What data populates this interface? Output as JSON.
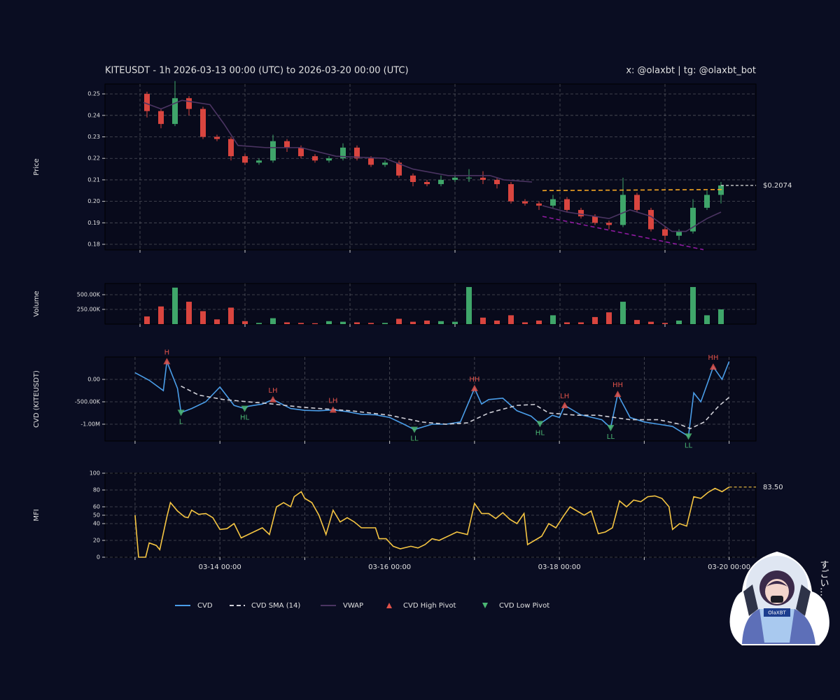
{
  "header": {
    "title": "KITEUSDT - 1h 2026-03-13 00:00 (UTC) to 2026-03-20 00:00 (UTC)",
    "credit": "x: @olaxbt | tg: @olaxbt_bot"
  },
  "sticker": {
    "badge": "OlaXBT",
    "caption": "すごい…"
  },
  "chart_data": [
    {
      "type": "candlestick",
      "ylabel": "Price",
      "grid": true,
      "up_color": "#3fa66a",
      "down_color": "#d9453f",
      "x": [
        2,
        6,
        10,
        14,
        18,
        22,
        26,
        30,
        34,
        38,
        42,
        46,
        50,
        54,
        58,
        62,
        66,
        70,
        74,
        78,
        82,
        86,
        90,
        94,
        98,
        102,
        106,
        110,
        114,
        118,
        122,
        126,
        130,
        134,
        138,
        142,
        146,
        150,
        154,
        158,
        162,
        166
      ],
      "open": [
        0.25,
        0.242,
        0.236,
        0.248,
        0.243,
        0.23,
        0.229,
        0.221,
        0.218,
        0.219,
        0.228,
        0.225,
        0.221,
        0.219,
        0.22,
        0.225,
        0.22,
        0.217,
        0.218,
        0.212,
        0.209,
        0.208,
        0.21,
        0.211,
        0.211,
        0.21,
        0.208,
        0.2,
        0.199,
        0.198,
        0.201,
        0.196,
        0.193,
        0.19,
        0.189,
        0.203,
        0.196,
        0.187,
        0.184,
        0.186,
        0.197,
        0.203
      ],
      "high": [
        0.251,
        0.243,
        0.256,
        0.249,
        0.244,
        0.231,
        0.23,
        0.222,
        0.22,
        0.231,
        0.229,
        0.226,
        0.222,
        0.221,
        0.227,
        0.226,
        0.221,
        0.219,
        0.219,
        0.213,
        0.21,
        0.212,
        0.212,
        0.215,
        0.214,
        0.211,
        0.209,
        0.201,
        0.2,
        0.203,
        0.202,
        0.197,
        0.194,
        0.191,
        0.211,
        0.204,
        0.197,
        0.188,
        0.187,
        0.201,
        0.205,
        0.209
      ],
      "low": [
        0.239,
        0.234,
        0.235,
        0.24,
        0.229,
        0.228,
        0.219,
        0.217,
        0.217,
        0.218,
        0.223,
        0.22,
        0.218,
        0.218,
        0.219,
        0.219,
        0.216,
        0.216,
        0.211,
        0.207,
        0.207,
        0.207,
        0.209,
        0.209,
        0.208,
        0.206,
        0.199,
        0.198,
        0.196,
        0.197,
        0.195,
        0.192,
        0.189,
        0.187,
        0.188,
        0.195,
        0.186,
        0.182,
        0.182,
        0.185,
        0.196,
        0.199
      ],
      "close": [
        0.242,
        0.236,
        0.248,
        0.243,
        0.23,
        0.229,
        0.221,
        0.218,
        0.219,
        0.228,
        0.225,
        0.221,
        0.219,
        0.22,
        0.225,
        0.22,
        0.217,
        0.218,
        0.212,
        0.209,
        0.208,
        0.21,
        0.211,
        0.211,
        0.21,
        0.208,
        0.2,
        0.199,
        0.198,
        0.201,
        0.196,
        0.193,
        0.19,
        0.189,
        0.203,
        0.196,
        0.187,
        0.184,
        0.186,
        0.197,
        0.203,
        0.2074
      ],
      "xlim": [
        -10,
        176
      ],
      "ylim": [
        0.1774,
        0.2546
      ],
      "yticks": [
        0.18,
        0.19,
        {
          "value": 0.2,
          "label": "0.20"
        },
        0.21,
        0.22,
        0.23,
        0.24,
        0.25
      ],
      "xgrid": [
        0,
        30,
        60,
        90,
        120,
        150
      ],
      "series": [
        {
          "name": "VWAP",
          "color": "#4b3462",
          "x": [
            1,
            6,
            12,
            20,
            24,
            28,
            36,
            46,
            56,
            70,
            78,
            88,
            100,
            104,
            112,
            114,
            115,
            122,
            130,
            134,
            140,
            146,
            152,
            156,
            162,
            166
          ],
          "values": [
            0.246,
            0.243,
            0.247,
            0.245,
            0.236,
            0.226,
            0.225,
            0.225,
            0.221,
            0.22,
            0.215,
            0.212,
            0.212,
            0.21,
            0.209,
            null,
            0.198,
            0.195,
            0.193,
            0.192,
            0.196,
            0.193,
            0.186,
            0.186,
            0.192,
            0.195
          ]
        }
      ],
      "trend_lines": [
        {
          "color": "#f5a623",
          "x": [
            115,
            167
          ],
          "values": [
            0.205,
            0.2055
          ]
        },
        {
          "color": "#8e1aa0",
          "x": [
            115,
            161
          ],
          "values": [
            0.193,
            0.1775
          ]
        }
      ],
      "last": {
        "value": 0.2074,
        "label": "$0.2074",
        "color": "#dddddd"
      }
    },
    {
      "type": "bar",
      "ylabel": "Volume",
      "grid": true,
      "up_color": "#3fa66a",
      "down_color": "#d9453f",
      "x": [
        2,
        6,
        10,
        14,
        18,
        22,
        26,
        30,
        34,
        38,
        42,
        46,
        50,
        54,
        58,
        62,
        66,
        70,
        74,
        78,
        82,
        86,
        90,
        94,
        98,
        102,
        106,
        110,
        114,
        118,
        122,
        126,
        130,
        134,
        138,
        142,
        146,
        150,
        154,
        158,
        162,
        166
      ],
      "values": [
        130000,
        300000,
        620000,
        380000,
        220000,
        80000,
        280000,
        50000,
        20000,
        100000,
        30000,
        20000,
        15000,
        50000,
        40000,
        30000,
        20000,
        20000,
        90000,
        40000,
        60000,
        50000,
        40000,
        630000,
        110000,
        60000,
        150000,
        30000,
        60000,
        150000,
        30000,
        30000,
        120000,
        200000,
        380000,
        70000,
        40000,
        20000,
        60000,
        630000,
        150000,
        250000
      ],
      "xlim": [
        -10,
        176
      ],
      "ylim": [
        0,
        690000
      ],
      "yticks": [
        {
          "value": 250000,
          "label": "250.00K"
        },
        {
          "value": 500000,
          "label": "500.00K"
        }
      ],
      "xgrid": [
        0,
        30,
        60,
        90,
        120,
        150
      ]
    },
    {
      "type": "line",
      "ylabel": "CVD (KITEUSDT)",
      "grid": true,
      "xlim": [
        -8.5,
        175.6
      ],
      "ylim": [
        -1375000,
        500000
      ],
      "yticks": [
        {
          "value": 0,
          "label": "0.00"
        },
        {
          "value": -500000,
          "label": "-500.00K"
        },
        {
          "value": -1000000,
          "label": "-1.00M"
        }
      ],
      "xgrid": [
        0,
        24,
        48,
        72,
        96,
        120,
        144,
        168
      ],
      "series": [
        {
          "name": "CVD",
          "color": "#4a9de8",
          "x": [
            0,
            4,
            8,
            9,
            12,
            13,
            16,
            20,
            24,
            28,
            31,
            32,
            36,
            39,
            44,
            48,
            52,
            56,
            60,
            64,
            68,
            72,
            76,
            79,
            84,
            88,
            92,
            96,
            98,
            100,
            104,
            108,
            112,
            114.5,
            118,
            120,
            121.5,
            126,
            132,
            134.5,
            136.5,
            140,
            144,
            148,
            152,
            156.5,
            158,
            160,
            162,
            163.5,
            166,
            168
          ],
          "values": [
            150000,
            -20000,
            -250000,
            400000,
            -200000,
            -740000,
            -650000,
            -500000,
            -170000,
            -580000,
            -650000,
            -600000,
            -550000,
            -450000,
            -650000,
            -690000,
            -700000,
            -680000,
            -720000,
            -780000,
            -790000,
            -850000,
            -1000000,
            -1120000,
            -1000000,
            -1000000,
            -950000,
            -200000,
            -550000,
            -450000,
            -420000,
            -700000,
            -820000,
            -990000,
            -800000,
            -850000,
            -580000,
            -790000,
            -900000,
            -1080000,
            -330000,
            -850000,
            -950000,
            -1000000,
            -1050000,
            -1270000,
            -300000,
            -500000,
            -60000,
            280000,
            0,
            400000
          ]
        },
        {
          "name": "CVD SMA (14)",
          "color": "#d0d0d8",
          "dash": true,
          "x": [
            13,
            18,
            25,
            39,
            47,
            61,
            72,
            81,
            88,
            94,
            100,
            108,
            113,
            117,
            125,
            131,
            140,
            148,
            154,
            157,
            161,
            165,
            168
          ],
          "values": [
            -150000,
            -350000,
            -450000,
            -550000,
            -620000,
            -700000,
            -800000,
            -950000,
            -1000000,
            -970000,
            -750000,
            -580000,
            -560000,
            -750000,
            -800000,
            -800000,
            -900000,
            -900000,
            -1000000,
            -1100000,
            -950000,
            -600000,
            -400000
          ]
        }
      ],
      "high_pivots": {
        "name": "CVD High Pivot",
        "color": "#e0524a",
        "x": [
          9,
          39,
          56,
          96,
          121.5,
          136.5,
          163.5
        ],
        "values": [
          400000,
          -450000,
          -680000,
          -200000,
          -580000,
          -330000,
          280000
        ],
        "labels": [
          "H",
          "LH",
          "LH",
          "HH",
          "LH",
          "HH",
          "HH"
        ]
      },
      "low_pivots": {
        "name": "CVD Low Pivot",
        "color": "#4bb673",
        "x": [
          13,
          31,
          79,
          114.5,
          134.5,
          156.5
        ],
        "values": [
          -740000,
          -650000,
          -1120000,
          -990000,
          -1080000,
          -1270000
        ],
        "labels": [
          "L",
          "HL",
          "LL",
          "HL",
          "LL",
          "LL"
        ]
      }
    },
    {
      "type": "line",
      "ylabel": "MFI",
      "grid": true,
      "xlim": [
        -8.5,
        175.6
      ],
      "ylim": [
        0,
        100
      ],
      "yticks": [
        0,
        20,
        40,
        50,
        60,
        80,
        100
      ],
      "xgrid": [
        0,
        24,
        48,
        72,
        96,
        120,
        144,
        168
      ],
      "xticks": [
        {
          "value": 24,
          "label": "03-14 00:00"
        },
        {
          "value": 72,
          "label": "03-16 00:00"
        },
        {
          "value": 120,
          "label": "03-18 00:00"
        },
        {
          "value": 168,
          "label": "03-20 00:00"
        }
      ],
      "series": [
        {
          "color": "#f5c542",
          "x": [
            0,
            1,
            3,
            4,
            6,
            7,
            9,
            10,
            12,
            14,
            15,
            16,
            18,
            20,
            22,
            24,
            26,
            28,
            30,
            32,
            36,
            38,
            40,
            42,
            44,
            45,
            47,
            48,
            50,
            52,
            54,
            56,
            58,
            60,
            62,
            64,
            68,
            69,
            71,
            73,
            75,
            78,
            80,
            82,
            84,
            86,
            89,
            91,
            94,
            96,
            98,
            100,
            102,
            104,
            106,
            108,
            110,
            111,
            113,
            115,
            117,
            119,
            121,
            123,
            125,
            127,
            129,
            131,
            133,
            135,
            137,
            139,
            141,
            143,
            145,
            147,
            149,
            151,
            152,
            154,
            156,
            158,
            160,
            162,
            164,
            166,
            168
          ],
          "values": [
            50,
            0,
            0,
            17,
            14,
            9,
            48,
            65,
            55,
            48,
            47,
            56,
            51,
            52,
            47,
            33,
            34,
            40,
            23,
            27,
            35,
            27,
            60,
            65,
            60,
            72,
            78,
            70,
            65,
            50,
            27,
            56,
            42,
            47,
            42,
            35,
            35,
            22,
            22,
            13,
            10,
            13,
            11,
            15,
            22,
            20,
            26,
            30,
            27,
            64,
            52,
            52,
            46,
            53,
            45,
            40,
            52,
            15,
            20,
            25,
            40,
            35,
            48,
            60,
            55,
            50,
            55,
            28,
            30,
            35,
            67,
            60,
            68,
            66,
            72,
            73,
            70,
            60,
            33,
            40,
            37,
            72,
            70,
            77,
            82,
            78,
            83.5
          ]
        }
      ],
      "last": {
        "value": 83.5,
        "label": "83.50",
        "color": "#f5c542"
      }
    }
  ]
}
